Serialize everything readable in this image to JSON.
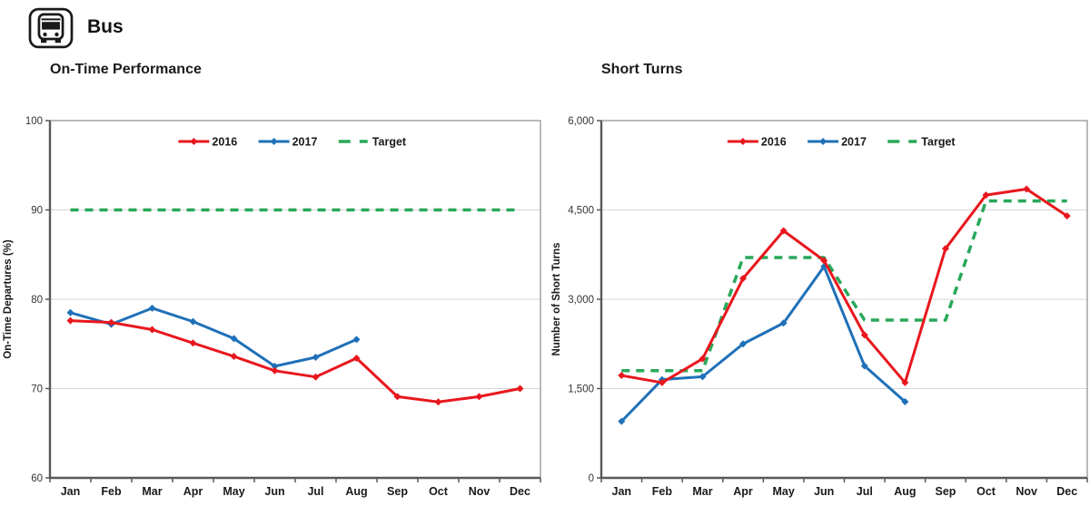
{
  "header": {
    "label": "Bus",
    "icon": "bus-icon"
  },
  "colors": {
    "red": "#E8171D",
    "blue": "#1F70B8",
    "green": "#28A859",
    "grid": "#D6D6D6",
    "axis": "#595959",
    "frame": "#8C8C8C",
    "text": "#1A1A1A",
    "tick_text": "#333333"
  },
  "chart_data": [
    {
      "type": "line",
      "title": "On-Time Performance",
      "ylabel": "On-Time Departures (%)",
      "xlabel": "",
      "categories": [
        "Jan",
        "Feb",
        "Mar",
        "Apr",
        "May",
        "Jun",
        "Jul",
        "Aug",
        "Sep",
        "Oct",
        "Nov",
        "Dec"
      ],
      "ylim": [
        60,
        100
      ],
      "yticks": [
        60,
        70,
        80,
        90,
        100
      ],
      "ytick_labels": [
        "60",
        "70",
        "80",
        "90",
        "100"
      ],
      "grid": true,
      "legend_position": "top-center-inside",
      "legend": [
        "2016",
        "2017",
        "Target"
      ],
      "series": [
        {
          "name": "2017",
          "color_key": "blue",
          "style": "solid",
          "marker": "diamond",
          "values": [
            78.5,
            77.2,
            79.0,
            77.5,
            75.6,
            72.5,
            73.5,
            75.5,
            null,
            null,
            null,
            null
          ]
        },
        {
          "name": "Target",
          "color_key": "green",
          "style": "dashed",
          "marker": "none",
          "values": [
            90,
            90,
            90,
            90,
            90,
            90,
            90,
            90,
            90,
            90,
            90,
            90
          ]
        },
        {
          "name": "2016",
          "color_key": "red",
          "style": "solid",
          "marker": "diamond",
          "values": [
            77.6,
            77.4,
            76.6,
            75.1,
            73.6,
            72.0,
            71.3,
            73.4,
            69.1,
            68.5,
            69.1,
            70.0
          ]
        }
      ]
    },
    {
      "type": "line",
      "title": "Short Turns",
      "ylabel": "Number of Short Turns",
      "xlabel": "",
      "categories": [
        "Jan",
        "Feb",
        "Mar",
        "Apr",
        "May",
        "Jun",
        "Jul",
        "Aug",
        "Sep",
        "Oct",
        "Nov",
        "Dec"
      ],
      "ylim": [
        0,
        6000
      ],
      "yticks": [
        0,
        1500,
        3000,
        4500,
        6000
      ],
      "ytick_labels": [
        "0",
        "1,500",
        "3,000",
        "4,500",
        "6,000"
      ],
      "grid": true,
      "legend_position": "top-center-inside",
      "legend": [
        "2016",
        "2017",
        "Target"
      ],
      "series": [
        {
          "name": "2017",
          "color_key": "blue",
          "style": "solid",
          "marker": "diamond",
          "values": [
            950,
            1650,
            1700,
            2250,
            2600,
            3550,
            1880,
            1280,
            null,
            null,
            null,
            null
          ]
        },
        {
          "name": "Target",
          "color_key": "green",
          "style": "dashed",
          "marker": "none",
          "values": [
            1800,
            1800,
            1800,
            3700,
            3700,
            3700,
            2650,
            2650,
            2650,
            4650,
            4650,
            4650
          ]
        },
        {
          "name": "2016",
          "color_key": "red",
          "style": "solid",
          "marker": "diamond",
          "values": [
            1720,
            1600,
            2000,
            3350,
            4150,
            3650,
            2400,
            1600,
            3850,
            4750,
            4850,
            4400
          ]
        }
      ]
    }
  ]
}
